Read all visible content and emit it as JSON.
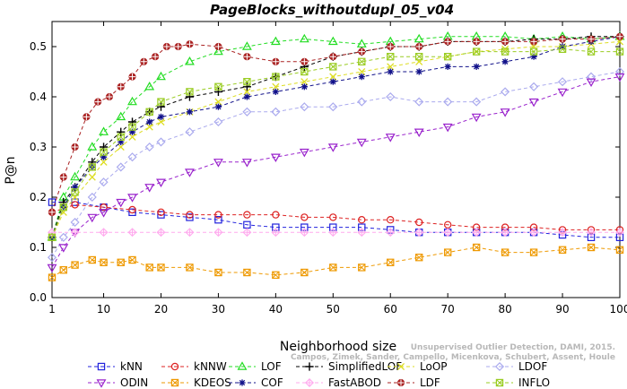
{
  "chart_data": {
    "type": "line",
    "title": "PageBlocks_withoutdupl_05_v04",
    "xlabel": "Neighborhood size",
    "ylabel": "P@n",
    "xlim": [
      1,
      100
    ],
    "ylim": [
      0,
      0.55
    ],
    "xticks": [
      1,
      10,
      20,
      30,
      40,
      50,
      60,
      70,
      80,
      90,
      100
    ],
    "yticks": [
      0.0,
      0.1,
      0.2,
      0.3,
      0.4,
      0.5
    ],
    "ytick_labels": [
      "0.0",
      "0.1",
      "0.2",
      "0.3",
      "0.4",
      "0.5"
    ],
    "grid": false,
    "legend_position": "bottom",
    "watermark": [
      "Unsupervised Outlier Detection, DAMI, 2015.",
      "Campos, Zimek, Sander, Campello, Micenkova, Schubert, Assent, Houle"
    ],
    "series": [
      {
        "name": "kNN",
        "color": "#2222dd",
        "marker": "square",
        "x": [
          1,
          5,
          10,
          15,
          20,
          25,
          30,
          35,
          40,
          45,
          50,
          55,
          60,
          65,
          70,
          75,
          80,
          85,
          90,
          95,
          100
        ],
        "values": [
          0.19,
          0.19,
          0.18,
          0.17,
          0.165,
          0.16,
          0.155,
          0.145,
          0.14,
          0.14,
          0.14,
          0.14,
          0.135,
          0.13,
          0.13,
          0.13,
          0.13,
          0.13,
          0.125,
          0.12,
          0.12
        ]
      },
      {
        "name": "kNNW",
        "color": "#dd2222",
        "marker": "circle",
        "x": [
          1,
          5,
          10,
          15,
          20,
          25,
          30,
          35,
          40,
          45,
          50,
          55,
          60,
          65,
          70,
          75,
          80,
          85,
          90,
          95,
          100
        ],
        "values": [
          0.17,
          0.185,
          0.18,
          0.175,
          0.17,
          0.165,
          0.165,
          0.165,
          0.165,
          0.16,
          0.16,
          0.155,
          0.155,
          0.15,
          0.145,
          0.14,
          0.14,
          0.14,
          0.135,
          0.135,
          0.135
        ]
      },
      {
        "name": "LOF",
        "color": "#22dd22",
        "marker": "triangle-up",
        "x": [
          1,
          3,
          5,
          8,
          10,
          13,
          15,
          18,
          20,
          25,
          30,
          35,
          40,
          45,
          50,
          55,
          60,
          65,
          70,
          75,
          80,
          85,
          90,
          95,
          100
        ],
        "values": [
          0.12,
          0.2,
          0.24,
          0.3,
          0.33,
          0.36,
          0.39,
          0.42,
          0.44,
          0.47,
          0.49,
          0.5,
          0.51,
          0.515,
          0.51,
          0.505,
          0.51,
          0.515,
          0.52,
          0.52,
          0.52,
          0.515,
          0.52,
          0.515,
          0.52
        ]
      },
      {
        "name": "SimplifiedLOF",
        "color": "#000000",
        "marker": "plus",
        "x": [
          1,
          3,
          5,
          8,
          10,
          13,
          15,
          18,
          20,
          25,
          30,
          35,
          40,
          45,
          50,
          55,
          60,
          65,
          70,
          75,
          80,
          85,
          90,
          95,
          100
        ],
        "values": [
          0.12,
          0.19,
          0.22,
          0.27,
          0.3,
          0.33,
          0.35,
          0.37,
          0.38,
          0.4,
          0.41,
          0.42,
          0.44,
          0.46,
          0.48,
          0.49,
          0.5,
          0.5,
          0.51,
          0.51,
          0.51,
          0.515,
          0.515,
          0.52,
          0.52
        ]
      },
      {
        "name": "LoOP",
        "color": "#dddd22",
        "marker": "x",
        "x": [
          1,
          3,
          5,
          8,
          10,
          13,
          15,
          18,
          20,
          25,
          30,
          35,
          40,
          45,
          50,
          55,
          60,
          65,
          70,
          75,
          80,
          85,
          90,
          95,
          100
        ],
        "values": [
          0.12,
          0.17,
          0.2,
          0.24,
          0.27,
          0.3,
          0.32,
          0.34,
          0.35,
          0.37,
          0.39,
          0.41,
          0.42,
          0.43,
          0.44,
          0.45,
          0.46,
          0.47,
          0.48,
          0.49,
          0.495,
          0.5,
          0.5,
          0.505,
          0.51
        ]
      },
      {
        "name": "LDOF",
        "color": "#aaaaee",
        "marker": "diamond",
        "x": [
          1,
          3,
          5,
          8,
          10,
          13,
          15,
          18,
          20,
          25,
          30,
          35,
          40,
          45,
          50,
          55,
          60,
          65,
          70,
          75,
          80,
          85,
          90,
          95,
          100
        ],
        "values": [
          0.08,
          0.12,
          0.15,
          0.2,
          0.23,
          0.26,
          0.28,
          0.3,
          0.31,
          0.33,
          0.35,
          0.37,
          0.37,
          0.38,
          0.38,
          0.39,
          0.4,
          0.39,
          0.39,
          0.39,
          0.41,
          0.42,
          0.43,
          0.44,
          0.45
        ]
      },
      {
        "name": "ODIN",
        "color": "#9922cc",
        "marker": "triangle-down",
        "x": [
          1,
          3,
          5,
          8,
          10,
          13,
          15,
          18,
          20,
          25,
          30,
          35,
          40,
          45,
          50,
          55,
          60,
          65,
          70,
          75,
          80,
          85,
          90,
          95,
          100
        ],
        "values": [
          0.06,
          0.1,
          0.13,
          0.16,
          0.17,
          0.19,
          0.2,
          0.22,
          0.23,
          0.25,
          0.27,
          0.27,
          0.28,
          0.29,
          0.3,
          0.31,
          0.32,
          0.33,
          0.34,
          0.36,
          0.37,
          0.39,
          0.41,
          0.43,
          0.44
        ]
      },
      {
        "name": "KDEOS",
        "color": "#ee9900",
        "marker": "square-x",
        "x": [
          1,
          3,
          5,
          8,
          10,
          13,
          15,
          18,
          20,
          25,
          30,
          35,
          40,
          45,
          50,
          55,
          60,
          65,
          70,
          75,
          80,
          85,
          90,
          95,
          100
        ],
        "values": [
          0.04,
          0.055,
          0.065,
          0.075,
          0.07,
          0.07,
          0.075,
          0.06,
          0.06,
          0.06,
          0.05,
          0.05,
          0.045,
          0.05,
          0.06,
          0.06,
          0.07,
          0.08,
          0.09,
          0.1,
          0.09,
          0.09,
          0.095,
          0.1,
          0.095
        ]
      },
      {
        "name": "COF",
        "color": "#11118a",
        "marker": "asterisk",
        "x": [
          1,
          3,
          5,
          8,
          10,
          13,
          15,
          18,
          20,
          25,
          30,
          35,
          40,
          45,
          50,
          55,
          60,
          65,
          70,
          75,
          80,
          85,
          90,
          95,
          100
        ],
        "values": [
          0.12,
          0.18,
          0.22,
          0.26,
          0.28,
          0.31,
          0.33,
          0.35,
          0.36,
          0.37,
          0.38,
          0.4,
          0.41,
          0.42,
          0.43,
          0.44,
          0.45,
          0.45,
          0.46,
          0.46,
          0.47,
          0.48,
          0.5,
          0.51,
          0.52
        ]
      },
      {
        "name": "FastABOD",
        "color": "#ffaaee",
        "marker": "diamond-plus",
        "x": [
          1,
          5,
          10,
          15,
          20,
          25,
          30,
          35,
          40,
          45,
          50,
          55,
          60,
          65,
          70,
          75,
          80,
          85,
          90,
          95,
          100
        ],
        "values": [
          0.13,
          0.13,
          0.13,
          0.13,
          0.13,
          0.13,
          0.13,
          0.13,
          0.13,
          0.13,
          0.13,
          0.13,
          0.13,
          0.13,
          0.13,
          0.13,
          0.13,
          0.13,
          0.13,
          0.13,
          0.13
        ]
      },
      {
        "name": "LDF",
        "color": "#aa2222",
        "marker": "circle-plus",
        "x": [
          1,
          3,
          5,
          7,
          9,
          11,
          13,
          15,
          17,
          19,
          21,
          23,
          25,
          30,
          35,
          40,
          45,
          50,
          55,
          60,
          65,
          70,
          75,
          80,
          85,
          90,
          95,
          100
        ],
        "values": [
          0.17,
          0.24,
          0.3,
          0.36,
          0.39,
          0.4,
          0.42,
          0.44,
          0.47,
          0.48,
          0.5,
          0.5,
          0.505,
          0.5,
          0.48,
          0.47,
          0.47,
          0.48,
          0.49,
          0.5,
          0.5,
          0.51,
          0.51,
          0.51,
          0.51,
          0.515,
          0.515,
          0.52
        ]
      },
      {
        "name": "INFLO",
        "color": "#99cc22",
        "marker": "square-x",
        "x": [
          1,
          3,
          5,
          8,
          10,
          13,
          15,
          18,
          20,
          25,
          30,
          35,
          40,
          45,
          50,
          55,
          60,
          65,
          70,
          75,
          80,
          85,
          90,
          95,
          100
        ],
        "values": [
          0.12,
          0.18,
          0.21,
          0.26,
          0.29,
          0.32,
          0.34,
          0.37,
          0.39,
          0.41,
          0.42,
          0.43,
          0.44,
          0.45,
          0.46,
          0.47,
          0.48,
          0.48,
          0.48,
          0.49,
          0.49,
          0.49,
          0.495,
          0.49,
          0.49
        ]
      }
    ],
    "legend_layout": [
      [
        "kNN",
        "kNNW",
        "LOF",
        "SimplifiedLOF",
        "LoOP",
        "LDOF"
      ],
      [
        "ODIN",
        "KDEOS",
        "COF",
        "FastABOD",
        "LDF",
        "INFLO"
      ]
    ]
  }
}
